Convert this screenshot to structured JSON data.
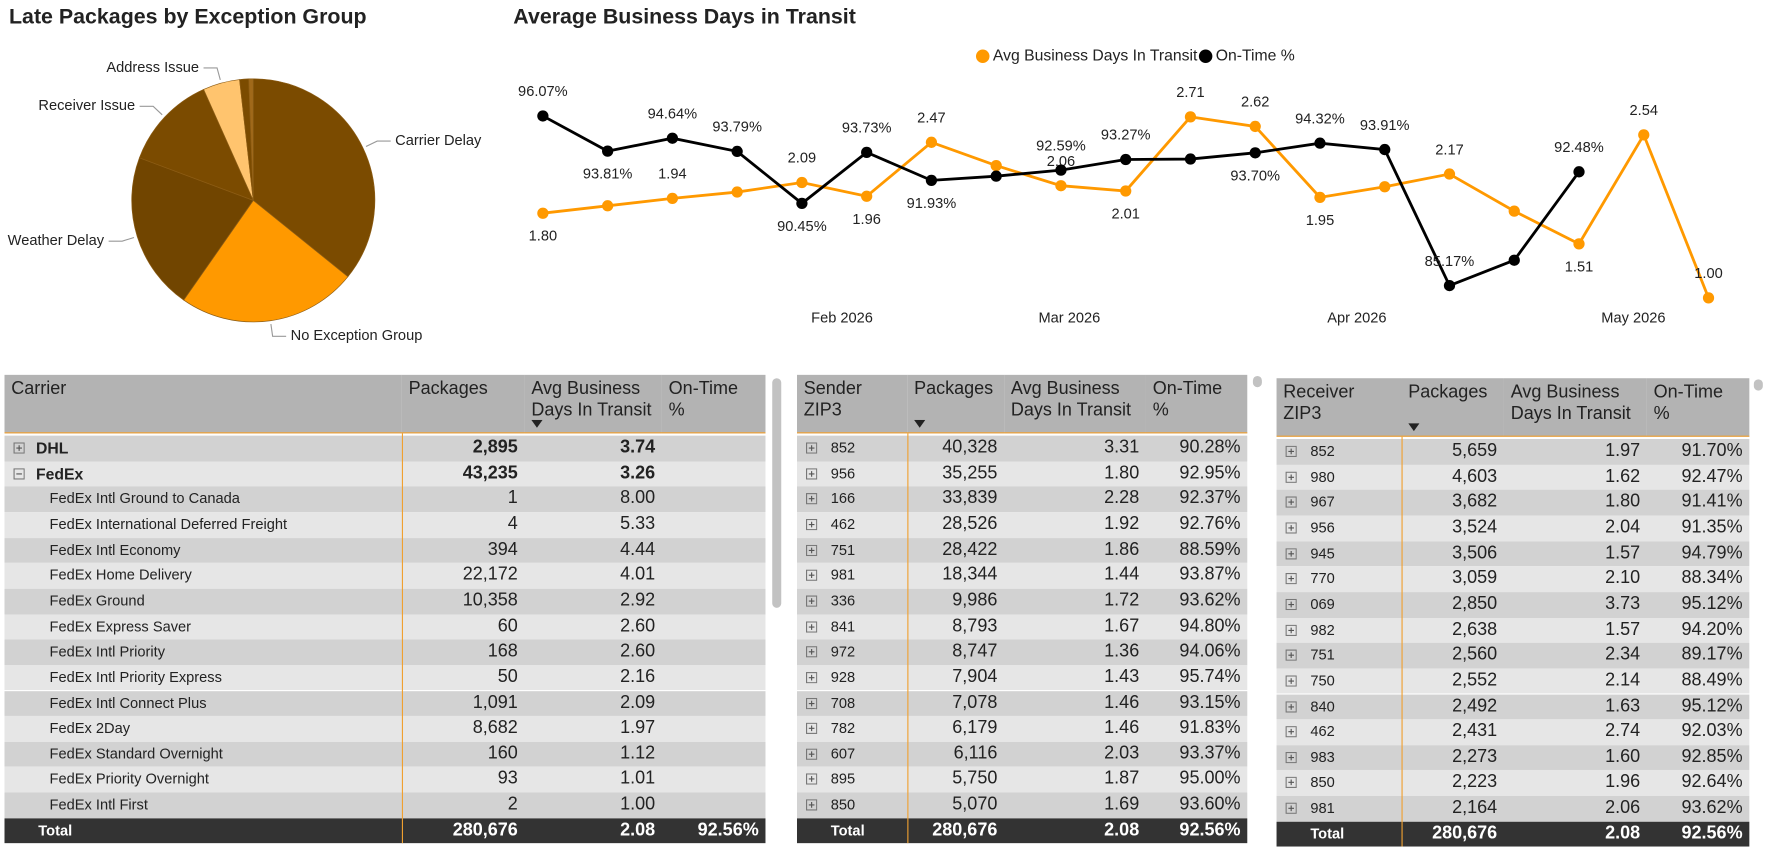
{
  "chart_data": [
    {
      "type": "pie",
      "title": "Late Packages by Exception Group",
      "categories": [
        "Carrier Delay",
        "No Exception Group",
        "Weather Delay",
        "Receiver Issue",
        "Address Issue",
        null,
        null
      ],
      "values": [
        35.8,
        23.9,
        21.0,
        12.6,
        4.9,
        1.2,
        0.6
      ],
      "colors": [
        "#7b4b00",
        "#ff9900",
        "#714500",
        "#7b4b00",
        "#ffc46e",
        "#7b4b00",
        "#a0691a"
      ]
    },
    {
      "type": "line",
      "title": "Average Business Days in Transit",
      "x": [
        0,
        1,
        2,
        3,
        4,
        5,
        6,
        7,
        8,
        9,
        10,
        11,
        12,
        13,
        14,
        15,
        16,
        17,
        18
      ],
      "xlim": [
        -0.3,
        18.3
      ],
      "xticks": [
        {
          "value": 4.62,
          "label": "Feb 2026"
        },
        {
          "value": 8.13,
          "label": "Mar 2026"
        },
        {
          "value": 12.57,
          "label": "Apr 2026"
        },
        {
          "value": 16.84,
          "label": "May 2026"
        }
      ],
      "ylim": [
        0.9,
        2.9
      ],
      "y2lim": [
        83.7,
        97.3
      ],
      "legend": "top",
      "series": [
        {
          "name": "Avg Business Days In Transit",
          "color": "#ff9900",
          "values": [
            1.8,
            1.87,
            1.94,
            2.0,
            2.09,
            1.96,
            2.47,
            2.25,
            2.06,
            2.01,
            2.71,
            2.62,
            1.95,
            2.05,
            2.17,
            1.82,
            1.51,
            2.54,
            1.0
          ],
          "value_labels": [
            "1.80",
            null,
            "1.94",
            null,
            "2.09",
            "1.96",
            "2.47",
            null,
            "2.06",
            "2.01",
            "2.71",
            "2.62",
            "1.95",
            null,
            "2.17",
            null,
            "1.51",
            "2.54",
            "1.00"
          ]
        },
        {
          "name": "On-Time %",
          "color": "#000000",
          "axis": "y2",
          "values": [
            96.07,
            93.81,
            94.64,
            93.79,
            90.45,
            93.73,
            91.93,
            92.2,
            92.59,
            93.27,
            93.3,
            93.7,
            94.32,
            93.91,
            85.17,
            86.8,
            92.48,
            null,
            null
          ],
          "value_labels": [
            "96.07%",
            "93.81%",
            "94.64%",
            "93.79%",
            "90.45%",
            "93.73%",
            "91.93%",
            null,
            "92.59%",
            "93.27%",
            null,
            "93.70%",
            "94.32%",
            "93.91%",
            "85.17%",
            null,
            "92.48%",
            null,
            null
          ]
        }
      ]
    }
  ],
  "tables": [
    {
      "columns": [
        "Carrier",
        "Packages",
        "Avg Business Days In Transit",
        "On-Time %"
      ],
      "groups": [
        {
          "cells": [
            "DHL",
            "2,895",
            "3.74"
          ],
          "children": []
        },
        {
          "cells": [
            "FedEx",
            "43,235",
            "3.26"
          ],
          "children": [
            [
              "FedEx Intl Ground to Canada",
              "1",
              "8.00"
            ],
            [
              "FedEx International Deferred Freight",
              "4",
              "5.33"
            ],
            [
              "FedEx Intl Economy",
              "394",
              "4.44"
            ],
            [
              "FedEx Home Delivery",
              "22,172",
              "4.01"
            ],
            [
              "FedEx Ground",
              "10,358",
              "2.92"
            ],
            [
              "FedEx Express Saver",
              "60",
              "2.60"
            ],
            [
              "FedEx Intl Priority",
              "168",
              "2.60"
            ],
            [
              "FedEx Intl Priority Express",
              "50",
              "2.16"
            ],
            [
              "FedEx Intl Connect Plus",
              "1,091",
              "2.09"
            ],
            [
              "FedEx 2Day",
              "8,682",
              "1.97"
            ],
            [
              "FedEx Standard Overnight",
              "160",
              "1.12"
            ],
            [
              "FedEx Priority Overnight",
              "93",
              "1.01"
            ],
            [
              "FedEx Intl First",
              "2",
              "1.00"
            ]
          ]
        }
      ],
      "total": [
        "Total",
        "280,676",
        "2.08",
        "92.56%"
      ]
    },
    {
      "columns": [
        "Sender ZIP3",
        "Packages",
        "Avg Business Days In Transit",
        "On-Time %"
      ],
      "rows": [
        [
          "852",
          "40,328",
          "3.31",
          "90.28%"
        ],
        [
          "956",
          "35,255",
          "1.80",
          "92.95%"
        ],
        [
          "166",
          "33,839",
          "2.28",
          "92.37%"
        ],
        [
          "462",
          "28,526",
          "1.92",
          "92.76%"
        ],
        [
          "751",
          "28,422",
          "1.86",
          "88.59%"
        ],
        [
          "981",
          "18,344",
          "1.44",
          "93.87%"
        ],
        [
          "336",
          "9,986",
          "1.72",
          "93.62%"
        ],
        [
          "841",
          "8,793",
          "1.67",
          "94.80%"
        ],
        [
          "972",
          "8,747",
          "1.36",
          "94.06%"
        ],
        [
          "928",
          "7,904",
          "1.43",
          "95.74%"
        ],
        [
          "708",
          "7,078",
          "1.46",
          "93.15%"
        ],
        [
          "782",
          "6,179",
          "1.46",
          "91.83%"
        ],
        [
          "607",
          "6,116",
          "2.03",
          "93.37%"
        ],
        [
          "895",
          "5,750",
          "1.87",
          "95.00%"
        ],
        [
          "850",
          "5,070",
          "1.69",
          "93.60%"
        ]
      ],
      "total": [
        "Total",
        "280,676",
        "2.08",
        "92.56%"
      ]
    },
    {
      "columns": [
        "Receiver ZIP3",
        "Packages",
        "Avg Business Days In Transit",
        "On-Time %"
      ],
      "rows": [
        [
          "852",
          "5,659",
          "1.97",
          "91.70%"
        ],
        [
          "980",
          "4,603",
          "1.62",
          "92.47%"
        ],
        [
          "967",
          "3,682",
          "1.80",
          "91.41%"
        ],
        [
          "956",
          "3,524",
          "2.04",
          "91.35%"
        ],
        [
          "945",
          "3,506",
          "1.57",
          "94.79%"
        ],
        [
          "770",
          "3,059",
          "2.10",
          "88.34%"
        ],
        [
          "069",
          "2,850",
          "3.73",
          "95.12%"
        ],
        [
          "982",
          "2,638",
          "1.57",
          "94.20%"
        ],
        [
          "751",
          "2,560",
          "2.34",
          "89.17%"
        ],
        [
          "750",
          "2,552",
          "2.14",
          "88.49%"
        ],
        [
          "840",
          "2,492",
          "1.63",
          "95.12%"
        ],
        [
          "462",
          "2,431",
          "2.74",
          "92.03%"
        ],
        [
          "983",
          "2,273",
          "1.60",
          "92.85%"
        ],
        [
          "850",
          "2,223",
          "1.96",
          "92.64%"
        ],
        [
          "981",
          "2,164",
          "2.06",
          "93.62%"
        ]
      ],
      "total": [
        "Total",
        "280,676",
        "2.08",
        "92.56%"
      ]
    }
  ]
}
